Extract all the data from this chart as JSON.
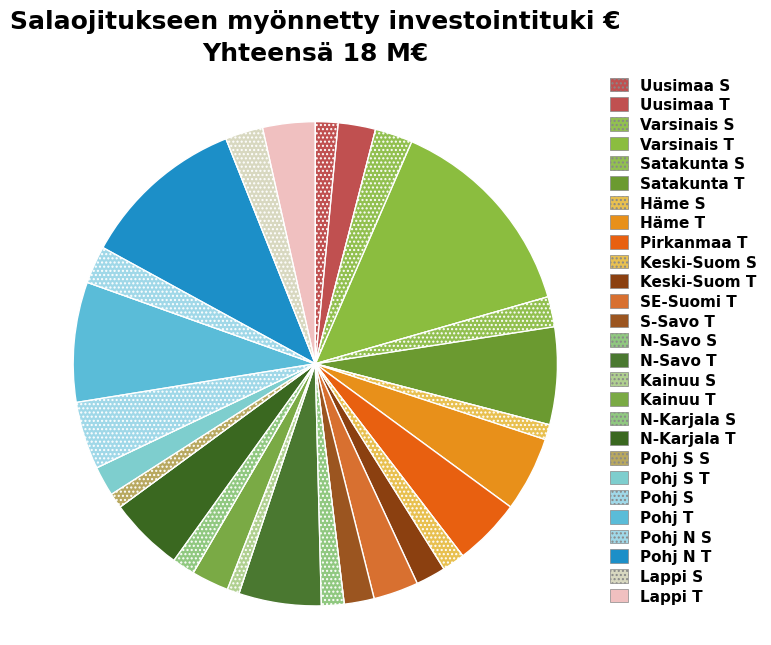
{
  "title": "Salaojitukseen myönnetty investointituki €\nYhteensä 18 M€",
  "labels": [
    "Uusimaa S",
    "Uusimaa T",
    "Varsinais S",
    "Varsinais T",
    "Satakunta S",
    "Satakunta T",
    "Häme S",
    "Häme T",
    "Pirkanmaa T",
    "Keski-Suom S",
    "Keski-Suom T",
    "SE-Suomi T",
    "S-Savo T",
    "N-Savo S",
    "N-Savo T",
    "Kainuu S",
    "Kainuu T",
    "N-Karjala S",
    "N-Karjala T",
    "Pohj S S",
    "Pohj S T",
    "Pohj S",
    "Pohj T",
    "Pohj N S",
    "Pohj N T",
    "Lappi S",
    "Lappi T"
  ],
  "values": [
    1.5,
    2.5,
    2.5,
    14.0,
    2.0,
    6.5,
    1.0,
    5.0,
    4.5,
    1.5,
    2.0,
    3.0,
    2.0,
    1.5,
    5.5,
    0.8,
    2.5,
    1.5,
    5.0,
    1.0,
    2.0,
    4.5,
    8.0,
    2.5,
    11.0,
    2.5,
    3.5
  ],
  "colors": [
    "#C05050",
    "#C05050",
    "#92C050",
    "#8BBD3F",
    "#92C050",
    "#6B9A30",
    "#E8C050",
    "#E8901A",
    "#E86010",
    "#E8C050",
    "#8B4010",
    "#D87030",
    "#9B5520",
    "#90C880",
    "#4A7830",
    "#B0D090",
    "#7AAA45",
    "#90C880",
    "#3A6820",
    "#B8A860",
    "#7ECECE",
    "#A0D8E8",
    "#5ABCD8",
    "#A0D8E8",
    "#1C8FC8",
    "#D8D8C0",
    "#F0C0C0"
  ],
  "hatched": [
    true,
    false,
    true,
    false,
    true,
    false,
    true,
    false,
    false,
    true,
    false,
    false,
    false,
    true,
    false,
    true,
    false,
    true,
    false,
    true,
    false,
    true,
    false,
    true,
    false,
    true,
    false
  ],
  "title_fontsize": 18,
  "legend_fontsize": 11,
  "startangle": 90
}
